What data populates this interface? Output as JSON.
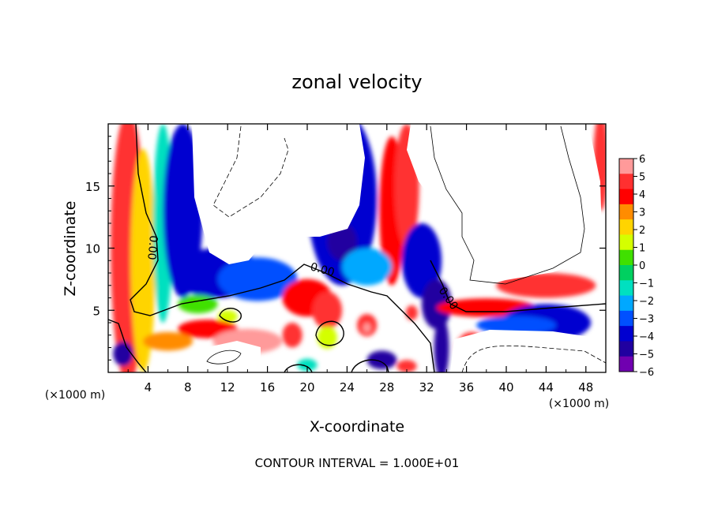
{
  "chart_data": {
    "type": "heatmap",
    "title": "zonal velocity",
    "xlabel": "X-coordinate",
    "ylabel": "Z-coordinate",
    "x_unit": "(×1000 m)",
    "y_unit": "(×1000 m)",
    "footer": "CONTOUR INTERVAL = 1.000E+01",
    "xlim": [
      0,
      50
    ],
    "ylim": [
      0,
      20
    ],
    "x_ticks": [
      4,
      8,
      12,
      16,
      20,
      24,
      28,
      32,
      36,
      40,
      44,
      48
    ],
    "y_ticks": [
      5,
      10,
      15
    ],
    "contour_label": "0.00",
    "colorbar": {
      "levels": [
        6,
        5,
        4,
        3,
        2,
        1,
        0,
        -1,
        -2,
        -3,
        -4,
        -5,
        -6
      ],
      "colors": [
        "#ff9a9a",
        "#ff3030",
        "#ff0000",
        "#ff8c00",
        "#ffd400",
        "#d4ff00",
        "#40e000",
        "#00d060",
        "#00e0c0",
        "#00a8ff",
        "#0050ff",
        "#0000d0",
        "#2000a0",
        "#7000b0"
      ]
    },
    "blobs": [
      {
        "x": 2,
        "z": 10,
        "w": 3.5,
        "h": 22,
        "v": 5.5
      },
      {
        "x": 3.5,
        "z": 9,
        "w": 2.5,
        "h": 18,
        "v": 2.5
      },
      {
        "x": 5.5,
        "z": 12,
        "w": 2,
        "h": 16,
        "v": -1
      },
      {
        "x": 7.5,
        "z": 13,
        "w": 4,
        "h": 14,
        "v": -4.5
      },
      {
        "x": 11,
        "z": 8,
        "w": 9,
        "h": 4,
        "v": -4
      },
      {
        "x": 15,
        "z": 7.5,
        "w": 8,
        "h": 3.5,
        "v": -3
      },
      {
        "x": 23.5,
        "z": 14,
        "w": 7,
        "h": 14,
        "v": -4
      },
      {
        "x": 23.5,
        "z": 10.5,
        "w": 3,
        "h": 3,
        "v": -5.5
      },
      {
        "x": 28.5,
        "z": 13,
        "w": 2.5,
        "h": 12,
        "v": 4
      },
      {
        "x": 30,
        "z": 15,
        "w": 2.5,
        "h": 10,
        "v": 5.5
      },
      {
        "x": 31.5,
        "z": 9,
        "w": 4,
        "h": 6,
        "v": -4
      },
      {
        "x": 33,
        "z": 5.5,
        "w": 3,
        "h": 4,
        "v": -5
      },
      {
        "x": 30.5,
        "z": 4.8,
        "w": 1.2,
        "h": 1.2,
        "v": 5
      },
      {
        "x": 33.5,
        "z": 2,
        "w": 1.5,
        "h": 5,
        "v": -5.5
      },
      {
        "x": 38,
        "z": 5.2,
        "w": 10,
        "h": 1.5,
        "v": 4
      },
      {
        "x": 44,
        "z": 7,
        "w": 10,
        "h": 2,
        "v": 5
      },
      {
        "x": 44,
        "z": 4,
        "w": 9,
        "h": 3,
        "v": -4
      },
      {
        "x": 41,
        "z": 3.8,
        "w": 8,
        "h": 1.5,
        "v": -3
      },
      {
        "x": 49.5,
        "z": 17,
        "w": 1.5,
        "h": 8,
        "v": 5.5
      },
      {
        "x": 20,
        "z": 6,
        "w": 5,
        "h": 3,
        "v": 4
      },
      {
        "x": 22,
        "z": 5,
        "w": 3,
        "h": 3,
        "v": 5
      },
      {
        "x": 26,
        "z": 3.8,
        "w": 2,
        "h": 1.8,
        "v": 5.5
      },
      {
        "x": 26,
        "z": 3.6,
        "w": 0.8,
        "h": 0.8,
        "v": 6
      },
      {
        "x": 22,
        "z": 2.8,
        "w": 2,
        "h": 1.8,
        "v": 1
      },
      {
        "x": 12,
        "z": 4.5,
        "w": 2,
        "h": 1,
        "v": 1
      },
      {
        "x": 10,
        "z": 3.5,
        "w": 6,
        "h": 1.5,
        "v": 4
      },
      {
        "x": 14,
        "z": 2.5,
        "w": 7,
        "h": 2,
        "v": 6
      },
      {
        "x": 6,
        "z": 2.5,
        "w": 5,
        "h": 1.5,
        "v": 3
      },
      {
        "x": 1.5,
        "z": 1.5,
        "w": 2,
        "h": 2,
        "v": -5
      },
      {
        "x": 18.5,
        "z": 3,
        "w": 2,
        "h": 2,
        "v": 5
      },
      {
        "x": 27.5,
        "z": 1,
        "w": 3,
        "h": 1.5,
        "v": -5
      },
      {
        "x": 30,
        "z": 0.5,
        "w": 2,
        "h": 1,
        "v": 5
      },
      {
        "x": 20,
        "z": 0.6,
        "w": 2,
        "h": 1,
        "v": -1
      },
      {
        "x": 36.5,
        "z": 2,
        "w": 3,
        "h": 2.5,
        "v": 5
      },
      {
        "x": 9,
        "z": 5.5,
        "w": 4,
        "h": 1.5,
        "v": 0.5
      },
      {
        "x": 26,
        "z": 8.5,
        "w": 5,
        "h": 3,
        "v": -2.5
      }
    ]
  }
}
